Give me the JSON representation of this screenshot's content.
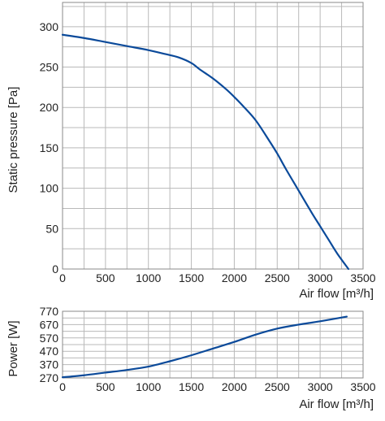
{
  "chart_data": [
    {
      "type": "line",
      "ylabel": "Static pressure [Pa]",
      "xlabel": "Air flow [m³/h]",
      "xlim": [
        0,
        3500
      ],
      "ylim": [
        0,
        330
      ],
      "x_ticks": [
        0,
        500,
        1000,
        1500,
        2000,
        2500,
        3000,
        3500
      ],
      "y_ticks": [
        0,
        50,
        100,
        150,
        200,
        250,
        300
      ],
      "grid": true,
      "series": [
        {
          "color": "#0b4a9a",
          "x": [
            0,
            250,
            500,
            750,
            1000,
            1200,
            1350,
            1500,
            1600,
            1750,
            1900,
            2000,
            2100,
            2250,
            2400,
            2500,
            2600,
            2750,
            2900,
            3000,
            3100,
            3200,
            3330
          ],
          "y": [
            290,
            286,
            281,
            276,
            271,
            266,
            262,
            255,
            247,
            236,
            223,
            213,
            202,
            184,
            160,
            143,
            124,
            97,
            70,
            53,
            36,
            19,
            0
          ]
        }
      ]
    },
    {
      "type": "line",
      "ylabel": "Power [W]",
      "xlabel": "Air flow [m³/h]",
      "xlim": [
        0,
        3500
      ],
      "ylim": [
        270,
        770
      ],
      "x_ticks": [
        0,
        500,
        1000,
        1500,
        2000,
        2500,
        3000,
        3500
      ],
      "y_ticks": [
        270,
        320,
        370,
        420,
        470,
        520,
        570,
        620,
        670,
        720,
        770
      ],
      "y_tick_labels": [
        270,
        370,
        470,
        570,
        670,
        770
      ],
      "grid": true,
      "series": [
        {
          "color": "#0b4a9a",
          "x": [
            0,
            250,
            500,
            750,
            1000,
            1250,
            1500,
            1750,
            2000,
            2250,
            2500,
            2750,
            3000,
            3310
          ],
          "y": [
            275,
            290,
            310,
            330,
            355,
            395,
            440,
            490,
            540,
            595,
            640,
            670,
            695,
            730
          ]
        }
      ]
    }
  ]
}
